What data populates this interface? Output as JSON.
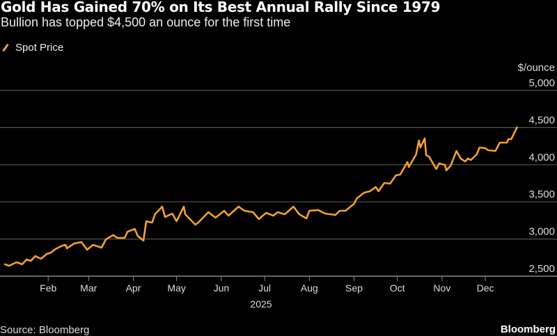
{
  "title": "Gold Has Gained 70% on Its Best Annual Rally Since 1979",
  "subtitle": "Bullion has topped $4,500 an ounce for the first time",
  "source": "Source: Bloomberg",
  "brand": "Bloomberg",
  "chart_data": {
    "type": "line",
    "ylabel": "$/ounce",
    "xlabel": "2025",
    "ylim": [
      2500,
      5000
    ],
    "yticks": [
      2500,
      3000,
      3500,
      4000,
      4500,
      5000
    ],
    "ytick_labels": [
      "2,500",
      "3,000",
      "3,500",
      "4,000",
      "4,500",
      "5,000"
    ],
    "xticks": [
      "2025-02-01",
      "2025-03-01",
      "2025-04-01",
      "2025-05-01",
      "2025-06-01",
      "2025-07-01",
      "2025-08-01",
      "2025-09-01",
      "2025-10-01",
      "2025-11-01",
      "2025-12-01"
    ],
    "xtick_labels": [
      "Feb",
      "Mar",
      "Apr",
      "May",
      "Jun",
      "Jul",
      "Aug",
      "Sep",
      "Oct",
      "Nov",
      "Dec"
    ],
    "grid": true,
    "legend": "top-left",
    "y_axis_side": "right",
    "series": [
      {
        "name": "Spot Price",
        "color": "#f5a033",
        "x": [
          "2025-01-02",
          "2025-01-05",
          "2025-01-10",
          "2025-01-14",
          "2025-01-17",
          "2025-01-20",
          "2025-01-23",
          "2025-01-27",
          "2025-01-31",
          "2025-02-03",
          "2025-02-06",
          "2025-02-11",
          "2025-02-13",
          "2025-02-14",
          "2025-02-19",
          "2025-02-24",
          "2025-02-28",
          "2025-03-04",
          "2025-03-10",
          "2025-03-13",
          "2025-03-18",
          "2025-03-21",
          "2025-03-26",
          "2025-03-28",
          "2025-04-02",
          "2025-04-04",
          "2025-04-08",
          "2025-04-10",
          "2025-04-14",
          "2025-04-16",
          "2025-04-21",
          "2025-04-23",
          "2025-04-28",
          "2025-05-01",
          "2025-05-06",
          "2025-05-07",
          "2025-05-14",
          "2025-05-16",
          "2025-05-23",
          "2025-05-28",
          "2025-06-03",
          "2025-06-06",
          "2025-06-13",
          "2025-06-17",
          "2025-06-23",
          "2025-06-27",
          "2025-07-02",
          "2025-07-07",
          "2025-07-10",
          "2025-07-15",
          "2025-07-21",
          "2025-07-25",
          "2025-07-30",
          "2025-08-01",
          "2025-08-07",
          "2025-08-12",
          "2025-08-19",
          "2025-08-22",
          "2025-08-26",
          "2025-09-01",
          "2025-09-03",
          "2025-09-08",
          "2025-09-12",
          "2025-09-16",
          "2025-09-18",
          "2025-09-22",
          "2025-09-26",
          "2025-09-30",
          "2025-10-03",
          "2025-10-08",
          "2025-10-09",
          "2025-10-14",
          "2025-10-16",
          "2025-10-17",
          "2025-10-20",
          "2025-10-21",
          "2025-10-23",
          "2025-10-28",
          "2025-10-30",
          "2025-11-03",
          "2025-11-04",
          "2025-11-07",
          "2025-11-11",
          "2025-11-14",
          "2025-11-17",
          "2025-11-19",
          "2025-11-21",
          "2025-11-25",
          "2025-11-27",
          "2025-12-01",
          "2025-12-03",
          "2025-12-08",
          "2025-12-11",
          "2025-12-16",
          "2025-12-17",
          "2025-12-19",
          "2025-12-23"
        ],
        "values": [
          2659,
          2640,
          2687,
          2660,
          2725,
          2706,
          2771,
          2734,
          2800,
          2818,
          2865,
          2912,
          2921,
          2874,
          2940,
          2959,
          2856,
          2921,
          2884,
          2996,
          3052,
          3015,
          3015,
          3099,
          3136,
          3043,
          2978,
          3240,
          3221,
          3333,
          3436,
          3296,
          3343,
          3240,
          3436,
          3333,
          3193,
          3221,
          3361,
          3287,
          3380,
          3315,
          3436,
          3380,
          3361,
          3268,
          3352,
          3315,
          3361,
          3333,
          3436,
          3333,
          3277,
          3380,
          3390,
          3343,
          3324,
          3380,
          3380,
          3474,
          3549,
          3624,
          3643,
          3699,
          3643,
          3755,
          3745,
          3858,
          3867,
          4036,
          3970,
          4139,
          4326,
          4232,
          4354,
          4129,
          4110,
          3942,
          4017,
          3998,
          3923,
          3989,
          4185,
          4082,
          4045,
          4082,
          4064,
          4139,
          4232,
          4223,
          4195,
          4185,
          4298,
          4298,
          4345,
          4345,
          4504
        ]
      }
    ]
  }
}
